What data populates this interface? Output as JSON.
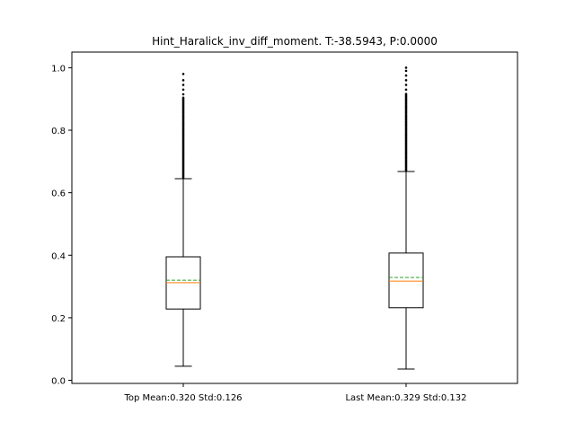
{
  "chart_data": {
    "type": "box",
    "title": "Hint_Haralick_inv_diff_moment. T:-38.5943, P:0.0000",
    "xlabel": "",
    "ylabel": "",
    "ylim": [
      -0.01,
      1.05
    ],
    "yticks": [
      "0.0",
      "0.2",
      "0.4",
      "0.6",
      "0.8",
      "1.0"
    ],
    "grid": false,
    "categories": [
      "Top Mean:0.320 Std:0.126",
      "Last Mean:0.329 Std:0.132"
    ],
    "boxes": [
      {
        "label": "Top Mean:0.320 Std:0.126",
        "whisker_low": 0.045,
        "q1": 0.228,
        "median": 0.312,
        "mean": 0.32,
        "q3": 0.395,
        "whisker_high": 0.645,
        "outliers_dense_from": 0.648,
        "outliers_dense_to": 0.905,
        "outliers_sparse": [
          0.915,
          0.93,
          0.945,
          0.96,
          0.98
        ]
      },
      {
        "label": "Last Mean:0.329 Std:0.132",
        "whisker_low": 0.036,
        "q1": 0.232,
        "median": 0.317,
        "mean": 0.329,
        "q3": 0.407,
        "whisker_high": 0.668,
        "outliers_dense_from": 0.672,
        "outliers_dense_to": 0.92,
        "outliers_sparse": [
          0.93,
          0.945,
          0.96,
          0.975,
          0.99,
          1.0
        ]
      }
    ],
    "colors": {
      "median": "#ff7f0e",
      "mean": "#2ca02c",
      "box": "#000000"
    }
  }
}
